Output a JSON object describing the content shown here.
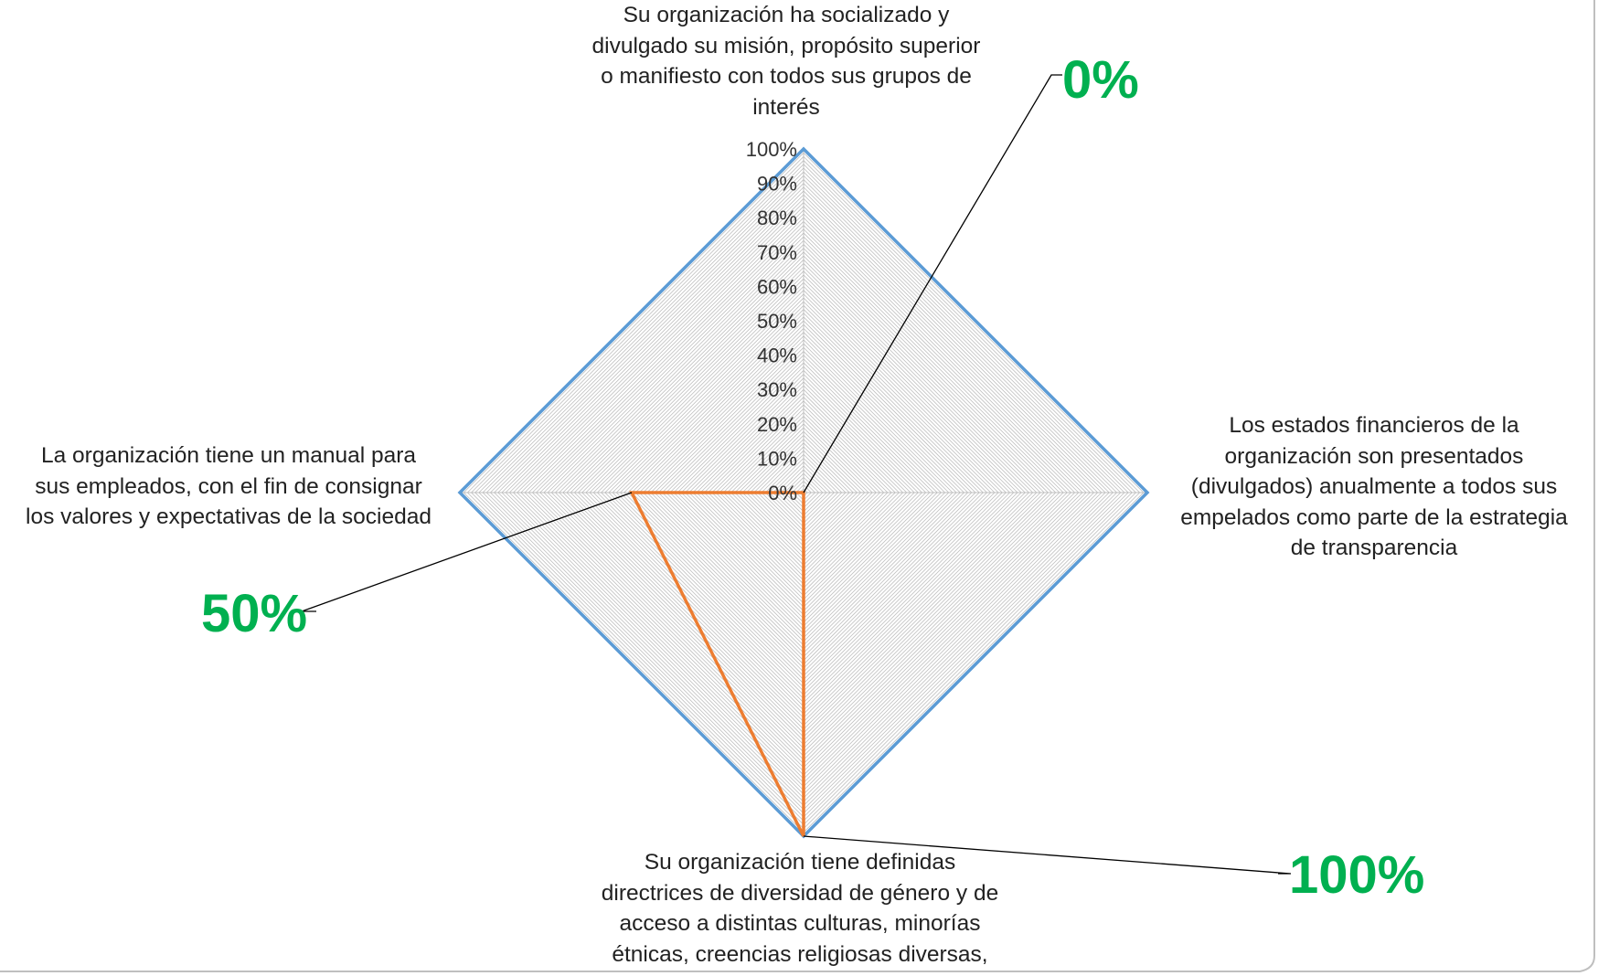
{
  "chart_data": {
    "type": "radar",
    "axes": [
      "Su organización ha socializado y divulgado su misión, propósito superior o manifiesto con todos sus grupos de interés",
      "Los estados financieros de la organización son presentados (divulgados) anualmente a todos sus empelados como parte de la estrategia de transparencia",
      "Su organización tiene definidas directrices de diversidad de género y de acceso a distintas culturas, minorías étnicas, creencias religiosas diversas,",
      "La organización tiene un manual para sus empleados, con el fin de consignar los valores y expectativas de la sociedad"
    ],
    "tick_labels": [
      "0%",
      "10%",
      "20%",
      "30%",
      "40%",
      "50%",
      "60%",
      "70%",
      "80%",
      "90%",
      "100%"
    ],
    "range": [
      0,
      1
    ],
    "series": [
      {
        "values": [
          1,
          1,
          1,
          1
        ],
        "color": "#5b9bd5"
      },
      {
        "values": [
          0,
          0,
          1,
          0.5
        ],
        "color": "#ed7d31"
      }
    ],
    "callouts": [
      {
        "text": "0%",
        "axis_index": 0,
        "value": 0
      },
      {
        "text": "100%",
        "axis_index": 2,
        "value": 1
      },
      {
        "text": "50%",
        "axis_index": 3,
        "value": 0.5
      }
    ],
    "callout_color": "#00b050",
    "grid_color": "#bfbfbf"
  },
  "labels": {
    "axis_top": [
      "Su organización ha socializado y",
      "divulgado su misión, propósito superior",
      "o manifiesto con todos sus grupos de",
      "interés"
    ],
    "axis_right": [
      "Los estados financieros de la",
      "organización son presentados",
      "(divulgados) anualmente a todos sus",
      "empelados como parte de la estrategia",
      "de transparencia"
    ],
    "axis_bottom": [
      "Su organización tiene definidas",
      "directrices de diversidad de género y de",
      "acceso a distintas culturas, minorías",
      "étnicas, creencias religiosas diversas,"
    ],
    "axis_left": [
      "La organización tiene un manual para",
      "sus empleados, con el fin de consignar",
      "los valores y expectativas de la sociedad"
    ]
  }
}
